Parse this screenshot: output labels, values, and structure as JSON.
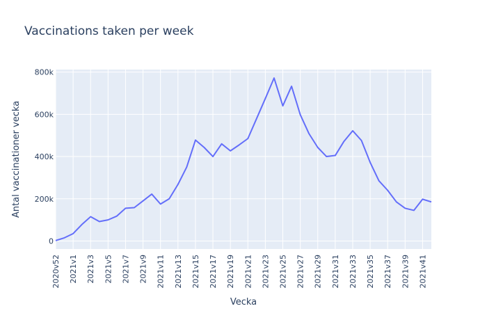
{
  "chart_data": {
    "type": "line",
    "title": "Vaccinations taken per week",
    "xlabel": "Vecka",
    "ylabel": "Antal vaccinationer vecka",
    "x": [
      "2020v52",
      "2020v53",
      "2021v1",
      "2021v2",
      "2021v3",
      "2021v4",
      "2021v5",
      "2021v6",
      "2021v7",
      "2021v8",
      "2021v9",
      "2021v10",
      "2021v11",
      "2021v12",
      "2021v13",
      "2021v14",
      "2021v15",
      "2021v16",
      "2021v17",
      "2021v18",
      "2021v19",
      "2021v20",
      "2021v21",
      "2021v22",
      "2021v23",
      "2021v24",
      "2021v25",
      "2021v26",
      "2021v27",
      "2021v28",
      "2021v29",
      "2021v30",
      "2021v31",
      "2021v32",
      "2021v33",
      "2021v34",
      "2021v35",
      "2021v36",
      "2021v37",
      "2021v38",
      "2021v39",
      "2021v40",
      "2021v41",
      "2021v42"
    ],
    "x_tick_labels": [
      "2020v52",
      "2021v1",
      "2021v3",
      "2021v5",
      "2021v7",
      "2021v9",
      "2021v11",
      "2021v13",
      "2021v15",
      "2021v17",
      "2021v19",
      "2021v21",
      "2021v23",
      "2021v25",
      "2021v27",
      "2021v29",
      "2021v31",
      "2021v33",
      "2021v35",
      "2021v37",
      "2021v39",
      "2021v41"
    ],
    "series": [
      {
        "values": [
          2000,
          15000,
          35000,
          78000,
          115000,
          92000,
          100000,
          118000,
          155000,
          158000,
          190000,
          222000,
          175000,
          200000,
          268000,
          350000,
          478000,
          443000,
          400000,
          460000,
          427000,
          455000,
          485000,
          580000,
          675000,
          772000,
          640000,
          733000,
          598000,
          508000,
          443000,
          400000,
          405000,
          472000,
          522000,
          476000,
          372000,
          285000,
          240000,
          185000,
          155000,
          145000,
          198000,
          185000
        ],
        "color": "#636efa"
      }
    ],
    "y_ticks": [
      0,
      200000,
      400000,
      600000,
      800000
    ],
    "y_tick_labels": [
      "0",
      "200k",
      "400k",
      "600k",
      "800k"
    ],
    "ylim": [
      -38000,
      812000
    ],
    "grid": true,
    "colors": {
      "plot_bg": "#e5ecf6",
      "grid": "#ffffff",
      "text": "#2a3f5f"
    }
  }
}
